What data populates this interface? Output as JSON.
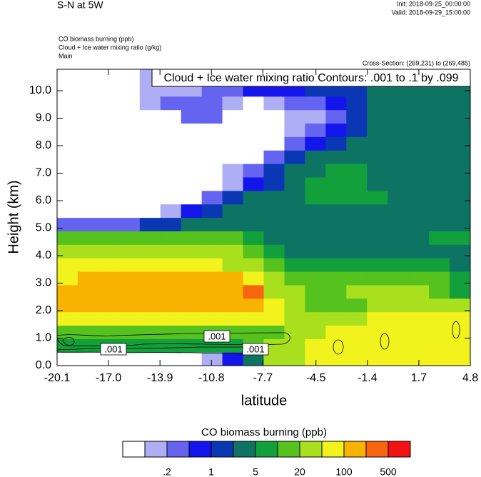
{
  "chart_data": {
    "type": "contour",
    "title": "S-N at 5W",
    "init": "Init: 2018-09-25_00:00:00",
    "valid": "Valid: 2018-09-29_15:00:00",
    "subtitles": [
      "CO biomass burning   (ppb)",
      "Cloud + Ice water mixing ratio   (g/kg)",
      "Main"
    ],
    "cross_section": "Cross-Section: (269,231) to (269,485)",
    "contour_info": "Cloud + Ice water mixing ratio Contours: .001 to .1 by .099",
    "contour_labels": [
      ".001",
      ".001",
      ".001"
    ],
    "x_label": "latitude",
    "y_label": "Height (km)",
    "colorbar_title": "CO biomass burning  (ppb)",
    "xlim": [
      -20.1,
      4.8
    ],
    "xticks": [
      -20.1,
      {
        "value": -17,
        "label": "-17.0"
      },
      -13.9,
      -10.8,
      -7.7,
      -4.5,
      -1.4,
      1.7,
      4.8
    ],
    "ylim": [
      0,
      10.78
    ],
    "yticks": [
      {
        "value": 0,
        "label": "0.0"
      },
      {
        "value": 1,
        "label": "1.0"
      },
      {
        "value": 2,
        "label": "2.0"
      },
      {
        "value": 3,
        "label": "3.0"
      },
      {
        "value": 4,
        "label": "4.0"
      },
      {
        "value": 5,
        "label": "5.0"
      },
      {
        "value": 6,
        "label": "6.0"
      },
      {
        "value": 7,
        "label": "7.0"
      },
      {
        "value": 8,
        "label": "8.0"
      },
      {
        "value": 9,
        "label": "9.0"
      },
      {
        "value": 10,
        "label": "10.0"
      }
    ],
    "levels": [
      0.1,
      0.2,
      0.5,
      1,
      2,
      5,
      10,
      20,
      50,
      100,
      200,
      500
    ],
    "colors": [
      "#ffffff",
      "#aeaef4",
      "#6464f0",
      "#1414ec",
      "#0a38b4",
      "#0d7464",
      "#12a03c",
      "#55c21e",
      "#a8e01e",
      "#f2f21c",
      "#f8b200",
      "#f86410",
      "#f21212"
    ],
    "colorbar_ticks": [
      {
        "value": 0.2,
        "label": ".2"
      },
      1,
      5,
      20,
      100,
      500
    ],
    "z": [
      [
        0.05,
        0.05,
        0.05,
        0.05,
        0.05,
        0.05,
        0.05,
        0.15,
        0.7,
        3,
        30,
        30,
        70,
        70,
        70,
        70,
        70,
        70,
        70,
        70
      ],
      [
        7,
        7,
        7,
        7,
        7,
        7,
        7,
        7,
        7,
        15,
        30,
        30,
        70,
        70,
        70,
        70,
        70,
        70,
        70,
        70
      ],
      [
        15,
        15,
        15,
        15,
        15,
        15,
        15,
        15,
        15,
        15,
        15,
        30,
        30,
        70,
        70,
        70,
        70,
        70,
        70,
        70
      ],
      [
        70,
        70,
        70,
        70,
        70,
        70,
        70,
        70,
        70,
        70,
        70,
        30,
        30,
        30,
        30,
        70,
        70,
        70,
        70,
        70
      ],
      [
        150,
        150,
        150,
        150,
        150,
        150,
        150,
        150,
        150,
        150,
        70,
        30,
        15,
        15,
        15,
        30,
        30,
        30,
        30,
        30
      ],
      [
        150,
        150,
        150,
        150,
        150,
        150,
        150,
        150,
        150,
        300,
        30,
        30,
        15,
        15,
        30,
        30,
        30,
        30,
        15,
        7
      ],
      [
        70,
        150,
        150,
        150,
        150,
        150,
        150,
        150,
        150,
        70,
        30,
        15,
        15,
        15,
        15,
        15,
        15,
        15,
        15,
        7
      ],
      [
        70,
        70,
        70,
        70,
        70,
        70,
        70,
        70,
        30,
        30,
        15,
        7,
        7,
        7,
        7,
        7,
        7,
        7,
        7,
        3
      ],
      [
        30,
        30,
        30,
        30,
        30,
        30,
        30,
        30,
        30,
        15,
        7,
        3,
        3,
        3,
        3,
        3,
        3,
        3,
        3,
        3
      ],
      [
        15,
        15,
        15,
        15,
        15,
        15,
        15,
        15,
        15,
        7,
        3,
        3,
        3,
        3,
        3,
        3,
        3,
        3,
        7,
        7
      ],
      [
        0.3,
        0.3,
        0.3,
        0.3,
        1.5,
        1.5,
        3,
        3,
        3,
        3,
        3,
        3,
        3,
        3,
        3,
        3,
        3,
        3,
        3,
        3
      ],
      [
        0.05,
        0.05,
        0.05,
        0.05,
        0.05,
        0.15,
        0.7,
        1.5,
        3,
        3,
        3,
        3,
        3,
        3,
        3,
        3,
        3,
        3,
        3,
        3
      ],
      [
        0.05,
        0.05,
        0.05,
        0.05,
        0.05,
        0.05,
        0.05,
        0.3,
        1.5,
        3,
        3,
        3,
        7,
        7,
        7,
        7,
        3,
        3,
        3,
        3
      ],
      [
        0.05,
        0.05,
        0.05,
        0.05,
        0.05,
        0.05,
        0.05,
        0.05,
        0.15,
        0.7,
        1.5,
        3,
        7,
        7,
        7,
        3,
        3,
        3,
        3,
        3
      ],
      [
        0.05,
        0.05,
        0.05,
        0.05,
        0.05,
        0.05,
        0.05,
        0.05,
        0.15,
        0.3,
        1.5,
        3,
        3,
        7,
        7,
        3,
        3,
        3,
        3,
        3
      ],
      [
        0.05,
        0.05,
        0.05,
        0.05,
        0.05,
        0.05,
        0.05,
        0.05,
        0.05,
        0.05,
        0.3,
        1.5,
        3,
        3,
        3,
        3,
        3,
        3,
        3,
        3
      ],
      [
        0.05,
        0.05,
        0.05,
        0.05,
        0.05,
        0.05,
        0.05,
        0.05,
        0.05,
        0.05,
        0.05,
        0.3,
        0.7,
        1.5,
        3,
        3,
        3,
        3,
        3,
        3
      ],
      [
        0.05,
        0.05,
        0.05,
        0.05,
        0.05,
        0.05,
        0.05,
        0.05,
        0.05,
        0.05,
        0.05,
        0.15,
        0.3,
        0.7,
        1.5,
        3,
        3,
        3,
        3,
        3
      ],
      [
        0.05,
        0.05,
        0.05,
        0.05,
        0.05,
        0.05,
        0.3,
        0.3,
        0.05,
        0.05,
        0.05,
        0.15,
        0.15,
        0.3,
        1.5,
        3,
        3,
        3,
        3,
        3
      ],
      [
        0.05,
        0.05,
        0.05,
        0.05,
        0.15,
        0.3,
        0.3,
        0.3,
        0.15,
        0.05,
        0.15,
        0.3,
        0.3,
        0.7,
        1.5,
        3,
        3,
        3,
        3,
        3
      ],
      [
        0.05,
        0.05,
        0.05,
        0.05,
        0.15,
        0.15,
        0.15,
        0.3,
        0.3,
        0.7,
        0.7,
        0.7,
        1.5,
        1.5,
        1.5,
        3,
        3,
        3,
        3,
        3
      ],
      [
        0.05,
        0.05,
        0.05,
        0.05,
        0.15,
        0.15,
        0.15,
        0.15,
        0.3,
        0.3,
        0.3,
        0.7,
        0.7,
        0.7,
        1.5,
        1.5,
        3,
        1.5,
        3,
        3
      ]
    ]
  }
}
